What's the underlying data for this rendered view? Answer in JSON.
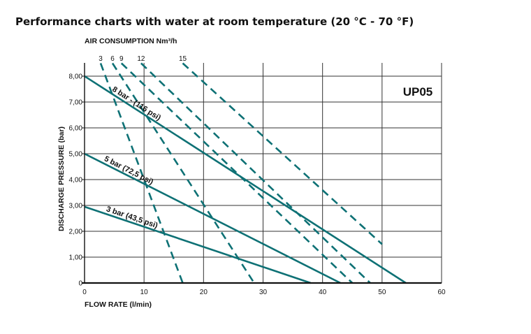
{
  "title": "Performance charts with water at room temperature (20 °C - 70 °F)",
  "colors": {
    "series": "#0e7175",
    "grid": "#333333",
    "axis": "#111111"
  },
  "chart_data": {
    "type": "line",
    "model": "UP05",
    "xlabel": "FLOW RATE (l/min)",
    "ylabel": "DISCHARGE PRESSURE (bar)",
    "top_label": "AIR CONSUMPTION Nm³/h",
    "xlim": [
      0,
      60
    ],
    "ylim": [
      0,
      8.5
    ],
    "x_ticks": [
      {
        "v": 0,
        "label": "0"
      },
      {
        "v": 10,
        "label": "10"
      },
      {
        "v": 20,
        "label": "20"
      },
      {
        "v": 30,
        "label": "30"
      },
      {
        "v": 40,
        "label": "40"
      },
      {
        "v": 50,
        "label": "50"
      },
      {
        "v": 60,
        "label": "60"
      }
    ],
    "y_ticks": [
      {
        "v": 0,
        "label": "0"
      },
      {
        "v": 1,
        "label": "1,00"
      },
      {
        "v": 2,
        "label": "2,00"
      },
      {
        "v": 3,
        "label": "3,00"
      },
      {
        "v": 4,
        "label": "4,00"
      },
      {
        "v": 5,
        "label": "5,00"
      },
      {
        "v": 6,
        "label": "6,00"
      },
      {
        "v": 7,
        "label": "7,00"
      },
      {
        "v": 8,
        "label": "8,00"
      }
    ],
    "series": [
      {
        "name": "8 bar - (116 psi)",
        "style": "solid",
        "x": [
          0,
          54
        ],
        "y": [
          8.0,
          0
        ]
      },
      {
        "name": "5 bar (72,5 psi)",
        "style": "solid",
        "x": [
          0,
          43
        ],
        "y": [
          5.0,
          0
        ]
      },
      {
        "name": "3 bar (43,5 psi)",
        "style": "solid",
        "x": [
          0,
          38
        ],
        "y": [
          2.95,
          0
        ]
      }
    ],
    "air_consumption": [
      {
        "label": "3",
        "x": [
          2.7,
          16.5
        ],
        "y": [
          8.5,
          0
        ]
      },
      {
        "label": "6",
        "x": [
          4.7,
          28.5
        ],
        "y": [
          8.5,
          0
        ]
      },
      {
        "label": "9",
        "x": [
          6.2,
          45
        ],
        "y": [
          8.5,
          0
        ]
      },
      {
        "label": "12",
        "x": [
          9.5,
          48
        ],
        "y": [
          8.5,
          0
        ]
      },
      {
        "label": "15",
        "x": [
          16.5,
          50
        ],
        "y": [
          8.5,
          1.5
        ]
      }
    ]
  }
}
